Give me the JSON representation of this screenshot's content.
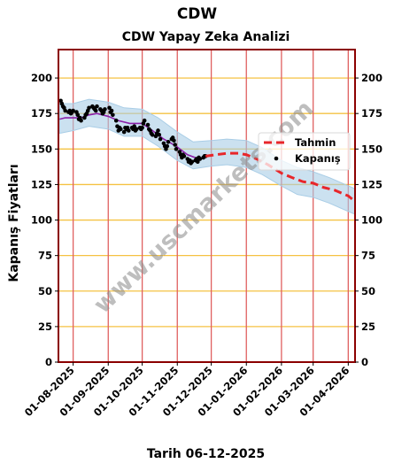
{
  "suptitle": "CDW",
  "footer": "Tarih 06-12-2025",
  "watermark": "www.uscmarkets.com",
  "colors": {
    "frame": "#8b0000",
    "grid_h": "#f5c242",
    "grid_v": "#e06060",
    "band": "#a9cde6",
    "trend": "#8b1fa8",
    "forecast": "#e8262a",
    "close": "#000000"
  },
  "chart_data": {
    "type": "line",
    "title": "CDW Yapay Zeka Analizi",
    "ylabel": "Kapanış Fiyatları",
    "xlabel": "",
    "ylim": [
      0,
      220
    ],
    "xlim": [
      "2025-07-19",
      "2026-04-07"
    ],
    "yticks": [
      0,
      25,
      50,
      75,
      100,
      125,
      150,
      175,
      200
    ],
    "xticks": [
      "01-08-2025",
      "01-09-2025",
      "01-10-2025",
      "01-11-2025",
      "01-12-2025",
      "01-01-2026",
      "01-02-2026",
      "01-03-2026",
      "01-04-2026"
    ],
    "grid": true,
    "legend": {
      "position": "right",
      "entries": [
        "Tahmin",
        "Kapanış"
      ]
    },
    "series": [
      {
        "name": "Kapanış",
        "style": "scatter",
        "points": [
          [
            "2025-07-21",
            184
          ],
          [
            "2025-07-22",
            182
          ],
          [
            "2025-07-23",
            180
          ],
          [
            "2025-07-24",
            179
          ],
          [
            "2025-07-25",
            177
          ],
          [
            "2025-07-28",
            176
          ],
          [
            "2025-07-29",
            177
          ],
          [
            "2025-07-30",
            175
          ],
          [
            "2025-07-31",
            176
          ],
          [
            "2025-08-01",
            177
          ],
          [
            "2025-08-04",
            176
          ],
          [
            "2025-08-05",
            174
          ],
          [
            "2025-08-06",
            171
          ],
          [
            "2025-08-07",
            172
          ],
          [
            "2025-08-08",
            170
          ],
          [
            "2025-08-11",
            172
          ],
          [
            "2025-08-12",
            174
          ],
          [
            "2025-08-13",
            175
          ],
          [
            "2025-08-14",
            177
          ],
          [
            "2025-08-15",
            179
          ],
          [
            "2025-08-18",
            180
          ],
          [
            "2025-08-19",
            179
          ],
          [
            "2025-08-20",
            178
          ],
          [
            "2025-08-21",
            177
          ],
          [
            "2025-08-22",
            180
          ],
          [
            "2025-08-25",
            178
          ],
          [
            "2025-08-26",
            177
          ],
          [
            "2025-08-27",
            175
          ],
          [
            "2025-08-28",
            176
          ],
          [
            "2025-08-29",
            178
          ],
          [
            "2025-09-02",
            179
          ],
          [
            "2025-09-03",
            176
          ],
          [
            "2025-09-04",
            177
          ],
          [
            "2025-09-05",
            174
          ],
          [
            "2025-09-08",
            170
          ],
          [
            "2025-09-09",
            166
          ],
          [
            "2025-09-10",
            163
          ],
          [
            "2025-09-11",
            165
          ],
          [
            "2025-09-12",
            164
          ],
          [
            "2025-09-15",
            162
          ],
          [
            "2025-09-16",
            165
          ],
          [
            "2025-09-17",
            164
          ],
          [
            "2025-09-18",
            165
          ],
          [
            "2025-09-19",
            163
          ],
          [
            "2025-09-22",
            165
          ],
          [
            "2025-09-23",
            164
          ],
          [
            "2025-09-24",
            166
          ],
          [
            "2025-09-25",
            163
          ],
          [
            "2025-09-26",
            164
          ],
          [
            "2025-09-29",
            165
          ],
          [
            "2025-09-30",
            164
          ],
          [
            "2025-10-01",
            165
          ],
          [
            "2025-10-02",
            168
          ],
          [
            "2025-10-03",
            170
          ],
          [
            "2025-10-06",
            167
          ],
          [
            "2025-10-07",
            164
          ],
          [
            "2025-10-08",
            163
          ],
          [
            "2025-10-09",
            161
          ],
          [
            "2025-10-10",
            160
          ],
          [
            "2025-10-13",
            159
          ],
          [
            "2025-10-14",
            161
          ],
          [
            "2025-10-15",
            163
          ],
          [
            "2025-10-16",
            160
          ],
          [
            "2025-10-17",
            157
          ],
          [
            "2025-10-20",
            154
          ],
          [
            "2025-10-21",
            152
          ],
          [
            "2025-10-22",
            150
          ],
          [
            "2025-10-23",
            152
          ],
          [
            "2025-10-24",
            155
          ],
          [
            "2025-10-27",
            157
          ],
          [
            "2025-10-28",
            158
          ],
          [
            "2025-10-29",
            156
          ],
          [
            "2025-10-30",
            153
          ],
          [
            "2025-10-31",
            150
          ],
          [
            "2025-11-03",
            148
          ],
          [
            "2025-11-04",
            146
          ],
          [
            "2025-11-05",
            144
          ],
          [
            "2025-11-06",
            146
          ],
          [
            "2025-11-07",
            145
          ],
          [
            "2025-11-10",
            143
          ],
          [
            "2025-11-11",
            141
          ],
          [
            "2025-11-12",
            142
          ],
          [
            "2025-11-13",
            140
          ],
          [
            "2025-11-14",
            141
          ],
          [
            "2025-11-17",
            142
          ],
          [
            "2025-11-18",
            143
          ],
          [
            "2025-11-19",
            141
          ],
          [
            "2025-11-20",
            144
          ],
          [
            "2025-11-21",
            143
          ],
          [
            "2025-11-24",
            144
          ],
          [
            "2025-11-25",
            145
          ],
          [
            "2025-11-26",
            145
          ]
        ]
      },
      {
        "name": "",
        "style": "trend",
        "points": [
          [
            "2025-07-20",
            171
          ],
          [
            "2025-07-25",
            172
          ],
          [
            "2025-08-01",
            172
          ],
          [
            "2025-08-08",
            172
          ],
          [
            "2025-08-15",
            174
          ],
          [
            "2025-08-22",
            175
          ],
          [
            "2025-09-01",
            173
          ],
          [
            "2025-09-10",
            170
          ],
          [
            "2025-09-20",
            168
          ],
          [
            "2025-10-01",
            168
          ],
          [
            "2025-10-10",
            163
          ],
          [
            "2025-10-20",
            157
          ],
          [
            "2025-10-31",
            152
          ],
          [
            "2025-11-10",
            146
          ],
          [
            "2025-11-20",
            143
          ],
          [
            "2025-11-26",
            144
          ]
        ]
      },
      {
        "name": "Tahmin",
        "style": "forecast",
        "points": [
          [
            "2025-11-26",
            145
          ],
          [
            "2025-12-05",
            146
          ],
          [
            "2025-12-15",
            147
          ],
          [
            "2025-12-25",
            147
          ],
          [
            "2026-01-01",
            146
          ],
          [
            "2026-01-10",
            143
          ],
          [
            "2026-01-20",
            139
          ],
          [
            "2026-02-01",
            133
          ],
          [
            "2026-02-10",
            130
          ],
          [
            "2026-02-20",
            127
          ],
          [
            "2026-03-01",
            126
          ],
          [
            "2026-03-10",
            123
          ],
          [
            "2026-03-20",
            121
          ],
          [
            "2026-04-01",
            117
          ],
          [
            "2026-04-07",
            113
          ]
        ]
      },
      {
        "name": "",
        "style": "band",
        "points": [
          [
            "2025-07-20",
            161,
            182
          ],
          [
            "2025-08-01",
            163,
            182
          ],
          [
            "2025-08-15",
            166,
            185
          ],
          [
            "2025-09-01",
            164,
            183
          ],
          [
            "2025-09-15",
            159,
            179
          ],
          [
            "2025-10-01",
            159,
            178
          ],
          [
            "2025-10-15",
            152,
            172
          ],
          [
            "2025-11-01",
            142,
            162
          ],
          [
            "2025-11-15",
            136,
            155
          ],
          [
            "2025-12-01",
            138,
            156
          ],
          [
            "2025-12-15",
            139,
            157
          ],
          [
            "2026-01-01",
            137,
            156
          ],
          [
            "2026-01-15",
            132,
            151
          ],
          [
            "2026-02-01",
            124,
            142
          ],
          [
            "2026-02-15",
            118,
            137
          ],
          [
            "2026-03-01",
            116,
            134
          ],
          [
            "2026-03-15",
            112,
            130
          ],
          [
            "2026-04-07",
            104,
            122
          ]
        ]
      }
    ]
  }
}
